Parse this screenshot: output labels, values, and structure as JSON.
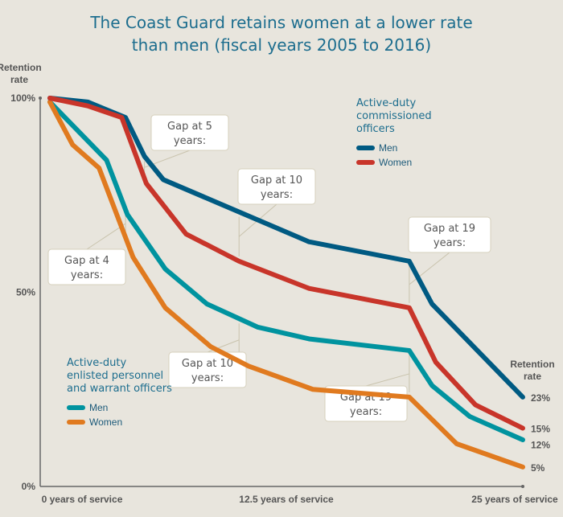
{
  "chart_data": {
    "type": "line",
    "title": "The Coast Guard retains women at a lower rate than men (fiscal years 2005 to 2016)",
    "ylabel": "Retention rate",
    "right_label": "Retention rate",
    "xlim": [
      0,
      25
    ],
    "ylim": [
      0,
      100
    ],
    "x_ticks": [
      {
        "value": 0,
        "label": "0 years of service"
      },
      {
        "value": 12.5,
        "label": "12.5 years of service"
      },
      {
        "value": 25,
        "label": "25 years of service"
      }
    ],
    "y_ticks": [
      {
        "value": 100,
        "label": "100%"
      },
      {
        "value": 50,
        "label": "50%"
      },
      {
        "value": 0,
        "label": "0%"
      }
    ],
    "grid": false,
    "groups": [
      {
        "title": "Active-duty commissioned officers",
        "legend_placement": "top-right"
      },
      {
        "title": "Active-duty enlisted personnel and warrant officers",
        "legend_placement": "bottom-left"
      }
    ],
    "series": [
      {
        "name": "Men",
        "group": 0,
        "color": "#005a82",
        "end_label": "23%",
        "points": [
          [
            0,
            100
          ],
          [
            2,
            99
          ],
          [
            4,
            95
          ],
          [
            5,
            85
          ],
          [
            6,
            79
          ],
          [
            13.7,
            63
          ],
          [
            19,
            58
          ],
          [
            20.2,
            47
          ],
          [
            25,
            23
          ]
        ]
      },
      {
        "name": "Women",
        "group": 0,
        "color": "#c8352a",
        "end_label": "15%",
        "points": [
          [
            0,
            100
          ],
          [
            2,
            98
          ],
          [
            3.8,
            95
          ],
          [
            5.1,
            78
          ],
          [
            7.2,
            65
          ],
          [
            10,
            58
          ],
          [
            13.7,
            51
          ],
          [
            19,
            46
          ],
          [
            20.4,
            32
          ],
          [
            22.5,
            21
          ],
          [
            25,
            15
          ]
        ]
      },
      {
        "name": "Men",
        "group": 1,
        "color": "#00939f",
        "end_label": "12%",
        "points": [
          [
            0,
            99
          ],
          [
            1,
            94
          ],
          [
            3,
            84
          ],
          [
            4.1,
            70
          ],
          [
            6.1,
            56
          ],
          [
            8.3,
            47
          ],
          [
            11,
            41
          ],
          [
            13.7,
            38
          ],
          [
            19,
            35
          ],
          [
            20.2,
            26
          ],
          [
            22.2,
            18
          ],
          [
            25,
            12
          ]
        ]
      },
      {
        "name": "Women",
        "group": 1,
        "color": "#e07a1f",
        "end_label": "5%",
        "points": [
          [
            0,
            99
          ],
          [
            1.2,
            88
          ],
          [
            2.6,
            82
          ],
          [
            4.4,
            59
          ],
          [
            6.1,
            46
          ],
          [
            8.5,
            36
          ],
          [
            10.5,
            31
          ],
          [
            13.9,
            25
          ],
          [
            19,
            23
          ],
          [
            21.5,
            11
          ],
          [
            25,
            5
          ]
        ]
      }
    ],
    "annotations": [
      {
        "text": [
          "Gap at 5",
          "years:"
        ],
        "x": 5,
        "between": [
          0,
          1
        ]
      },
      {
        "text": [
          "Gap at 10",
          "years:"
        ],
        "x": 10,
        "between": [
          0,
          1
        ]
      },
      {
        "text": [
          "Gap at 19",
          "years:"
        ],
        "x": 19,
        "between": [
          0,
          1
        ]
      },
      {
        "text": [
          "Gap at 4",
          "years:"
        ],
        "x": 4,
        "between": [
          2,
          3
        ]
      },
      {
        "text": [
          "Gap at 10",
          "years:"
        ],
        "x": 10,
        "between": [
          2,
          3
        ]
      },
      {
        "text": [
          "Gap at 19",
          "years:"
        ],
        "x": 19,
        "between": [
          2,
          3
        ]
      }
    ]
  }
}
